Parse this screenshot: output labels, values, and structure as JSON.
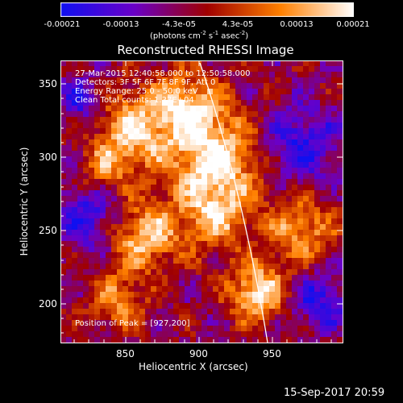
{
  "colorbar": {
    "tick_labels": [
      "-0.00021",
      "-0.00013",
      "-4.3e-05",
      "4.3e-05",
      "0.00013",
      "0.00021"
    ],
    "unit_prefix": "(photons cm",
    "unit_exp1": "-2",
    "unit_mid1": " s",
    "unit_exp2": "-1",
    "unit_mid2": " asec",
    "unit_exp3": "-2",
    "unit_suffix": ")",
    "colors": [
      "#1010f0",
      "#6a00c8",
      "#a00000",
      "#ff8000",
      "#ffffff"
    ]
  },
  "plot": {
    "title": "Reconstructed RHESSI Image",
    "xlabel": "Heliocentric X (arcsec)",
    "ylabel": "Heliocentric Y (arcsec)",
    "x_ticks": [
      "850",
      "900",
      "950"
    ],
    "y_ticks": [
      "350",
      "300",
      "250",
      "200"
    ],
    "info": {
      "time": "27-Mar-2015 12:40:58.000 to 12:50:58.000",
      "detectors": "Detectors: 3F 5F 6F 7F 8F 9F, Att 0",
      "energy": "Energy Range: 25.0 - 50.0 keV",
      "clean": "Clean     Total counts: 1.37E+04"
    },
    "peak": "Position of Peak = [927,200]"
  },
  "footer": {
    "timestamp": "15-Sep-2017 20:59"
  }
}
